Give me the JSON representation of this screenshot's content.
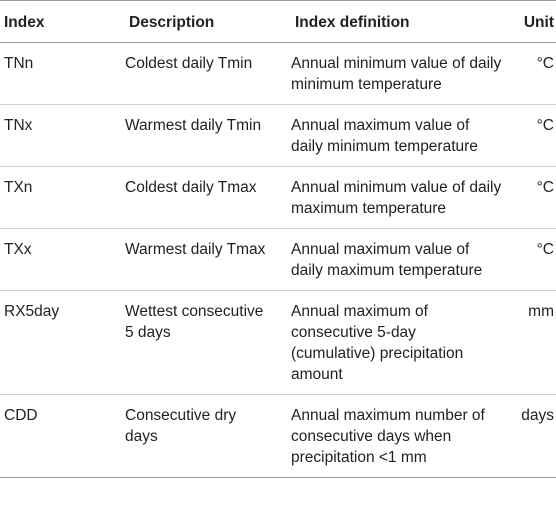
{
  "headers": {
    "index": "Index",
    "description": "Description",
    "definition": "Index definition",
    "unit": "Unit"
  },
  "rows": [
    {
      "index": "TNn",
      "description": "Coldest daily Tmin",
      "definition": "Annual minimum value of daily minimum temperature",
      "unit": "°C"
    },
    {
      "index": "TNx",
      "description": "Warmest daily Tmin",
      "definition": "Annual maximum value of daily minimum temperature",
      "unit": "°C"
    },
    {
      "index": "TXn",
      "description": "Coldest daily Tmax",
      "definition": "Annual minimum value of daily maximum temperature",
      "unit": "°C"
    },
    {
      "index": "TXx",
      "description": "Warmest daily Tmax",
      "definition": "Annual maximum value of daily maximum temperature",
      "unit": "°C"
    },
    {
      "index": "RX5day",
      "description": "Wettest consecutive 5 days",
      "definition": "Annual maximum of consecutive 5-day (cumulative) precipitation amount",
      "unit": "mm"
    },
    {
      "index": "CDD",
      "description": "Consecutive dry days",
      "definition": "Annual maximum number of consecutive days when precipitation <1 mm",
      "unit": "days"
    }
  ]
}
